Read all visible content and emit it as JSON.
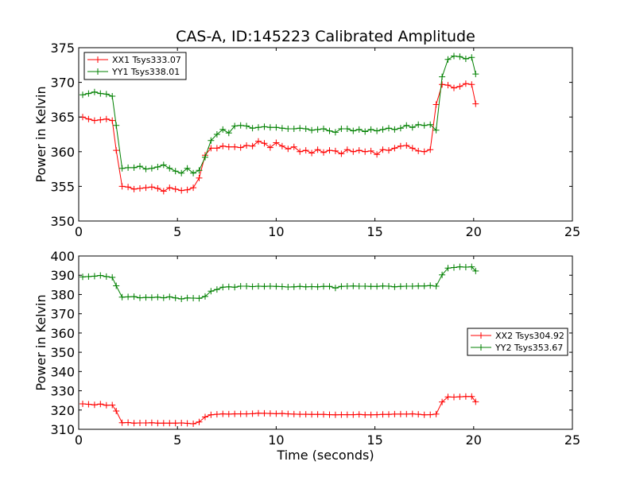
{
  "chart_data": [
    {
      "type": "line",
      "title": "CAS-A, ID:145223 Calibrated Amplitude",
      "xlabel": "",
      "ylabel": "Power in Kelvin",
      "xlim": [
        0,
        25
      ],
      "ylim": [
        350,
        375
      ],
      "xticks": [
        0,
        5,
        10,
        15,
        20,
        25
      ],
      "yticks": [
        350,
        355,
        360,
        365,
        370,
        375
      ],
      "grid": false,
      "legend": "top-left",
      "series": [
        {
          "name": "XX1 Tsys333.07",
          "color": "#ff0000",
          "x": [
            0.2,
            0.5,
            0.8,
            1.1,
            1.4,
            1.7,
            1.9,
            2.2,
            2.5,
            2.8,
            3.1,
            3.4,
            3.7,
            4.0,
            4.3,
            4.6,
            4.9,
            5.2,
            5.5,
            5.8,
            6.1,
            6.4,
            6.7,
            7.0,
            7.3,
            7.6,
            7.9,
            8.2,
            8.5,
            8.8,
            9.1,
            9.4,
            9.7,
            10.0,
            10.3,
            10.6,
            10.9,
            11.2,
            11.5,
            11.8,
            12.1,
            12.4,
            12.7,
            13.0,
            13.3,
            13.6,
            13.9,
            14.2,
            14.5,
            14.8,
            15.1,
            15.4,
            15.7,
            16.0,
            16.3,
            16.6,
            16.9,
            17.2,
            17.5,
            17.8,
            18.1,
            18.4,
            18.7,
            19.0,
            19.3,
            19.6,
            19.9,
            20.1
          ],
          "y": [
            365.0,
            364.7,
            364.5,
            364.6,
            364.7,
            364.5,
            360.2,
            355.0,
            354.9,
            354.6,
            354.7,
            354.8,
            354.9,
            354.7,
            354.3,
            354.8,
            354.6,
            354.4,
            354.5,
            354.8,
            356.2,
            359.5,
            360.5,
            360.5,
            360.8,
            360.7,
            360.7,
            360.6,
            360.9,
            360.8,
            361.5,
            361.2,
            360.6,
            361.3,
            360.8,
            360.4,
            360.7,
            360.0,
            360.2,
            359.8,
            360.3,
            359.9,
            360.2,
            360.1,
            359.7,
            360.3,
            360.0,
            360.2,
            360.0,
            360.1,
            359.6,
            360.3,
            360.2,
            360.5,
            360.8,
            360.9,
            360.5,
            360.1,
            360.0,
            360.3,
            366.8,
            369.7,
            369.6,
            369.2,
            369.4,
            369.8,
            369.7,
            366.9
          ]
        },
        {
          "name": "YY1 Tsys338.01",
          "color": "#008000",
          "x": [
            0.2,
            0.5,
            0.8,
            1.1,
            1.4,
            1.7,
            1.9,
            2.2,
            2.5,
            2.8,
            3.1,
            3.4,
            3.7,
            4.0,
            4.3,
            4.6,
            4.9,
            5.2,
            5.5,
            5.8,
            6.1,
            6.4,
            6.7,
            7.0,
            7.3,
            7.6,
            7.9,
            8.2,
            8.5,
            8.8,
            9.1,
            9.4,
            9.7,
            10.0,
            10.3,
            10.6,
            10.9,
            11.2,
            11.5,
            11.8,
            12.1,
            12.4,
            12.7,
            13.0,
            13.3,
            13.6,
            13.9,
            14.2,
            14.5,
            14.8,
            15.1,
            15.4,
            15.7,
            16.0,
            16.3,
            16.6,
            16.9,
            17.2,
            17.5,
            17.8,
            18.1,
            18.4,
            18.7,
            19.0,
            19.3,
            19.6,
            19.9,
            20.1
          ],
          "y": [
            368.2,
            368.4,
            368.6,
            368.4,
            368.3,
            368.0,
            363.8,
            357.6,
            357.7,
            357.7,
            357.9,
            357.5,
            357.6,
            357.8,
            358.1,
            357.6,
            357.2,
            356.9,
            357.6,
            356.9,
            357.3,
            359.2,
            361.6,
            362.5,
            363.2,
            362.7,
            363.7,
            363.8,
            363.7,
            363.4,
            363.5,
            363.6,
            363.5,
            363.5,
            363.4,
            363.3,
            363.3,
            363.4,
            363.3,
            363.1,
            363.2,
            363.3,
            363.0,
            362.8,
            363.3,
            363.3,
            363.0,
            363.2,
            362.9,
            363.2,
            363.0,
            363.2,
            363.4,
            363.2,
            363.4,
            363.8,
            363.5,
            363.9,
            363.8,
            363.9,
            363.1,
            370.8,
            373.3,
            373.8,
            373.7,
            373.4,
            373.6,
            371.2
          ]
        }
      ]
    },
    {
      "type": "line",
      "title": "",
      "xlabel": "Time (seconds)",
      "ylabel": "Power in Kelvin",
      "xlim": [
        0,
        25
      ],
      "ylim": [
        310,
        400
      ],
      "xticks": [
        0,
        5,
        10,
        15,
        20,
        25
      ],
      "yticks": [
        310,
        320,
        330,
        340,
        350,
        360,
        370,
        380,
        390,
        400
      ],
      "grid": false,
      "legend": "center-right",
      "series": [
        {
          "name": "XX2 Tsys304.92",
          "color": "#ff0000",
          "x": [
            0.2,
            0.5,
            0.8,
            1.1,
            1.4,
            1.7,
            1.9,
            2.2,
            2.5,
            2.8,
            3.1,
            3.4,
            3.7,
            4.0,
            4.3,
            4.6,
            4.9,
            5.2,
            5.5,
            5.8,
            6.1,
            6.4,
            6.7,
            7.0,
            7.3,
            7.6,
            7.9,
            8.2,
            8.5,
            8.8,
            9.1,
            9.4,
            9.7,
            10.0,
            10.3,
            10.6,
            10.9,
            11.2,
            11.5,
            11.8,
            12.1,
            12.4,
            12.7,
            13.0,
            13.3,
            13.6,
            13.9,
            14.2,
            14.5,
            14.8,
            15.1,
            15.4,
            15.7,
            16.0,
            16.3,
            16.6,
            16.9,
            17.2,
            17.5,
            17.8,
            18.1,
            18.4,
            18.7,
            19.0,
            19.3,
            19.6,
            19.9,
            20.1
          ],
          "y": [
            323.2,
            323.0,
            322.7,
            323.1,
            322.5,
            322.6,
            319.5,
            313.4,
            313.5,
            313.2,
            313.3,
            313.3,
            313.4,
            313.2,
            313.2,
            313.2,
            313.2,
            313.3,
            313.1,
            312.9,
            313.8,
            316.4,
            317.5,
            317.8,
            318.0,
            317.9,
            318.0,
            318.0,
            318.0,
            318.1,
            318.4,
            318.3,
            318.2,
            318.1,
            318.2,
            318.0,
            317.9,
            317.8,
            317.8,
            317.7,
            317.7,
            317.7,
            317.6,
            317.5,
            317.6,
            317.6,
            317.6,
            317.7,
            317.5,
            317.5,
            317.6,
            317.7,
            317.7,
            317.9,
            317.9,
            317.9,
            318.0,
            317.8,
            317.5,
            317.6,
            317.9,
            324.2,
            326.8,
            326.7,
            326.9,
            327.0,
            327.0,
            324.3
          ]
        },
        {
          "name": "YY2 Tsys353.67",
          "color": "#008000",
          "x": [
            0.2,
            0.5,
            0.8,
            1.1,
            1.4,
            1.7,
            1.9,
            2.2,
            2.5,
            2.8,
            3.1,
            3.4,
            3.7,
            4.0,
            4.3,
            4.6,
            4.9,
            5.2,
            5.5,
            5.8,
            6.1,
            6.4,
            6.7,
            7.0,
            7.3,
            7.6,
            7.9,
            8.2,
            8.5,
            8.8,
            9.1,
            9.4,
            9.7,
            10.0,
            10.3,
            10.6,
            10.9,
            11.2,
            11.5,
            11.8,
            12.1,
            12.4,
            12.7,
            13.0,
            13.3,
            13.6,
            13.9,
            14.2,
            14.5,
            14.8,
            15.1,
            15.4,
            15.7,
            16.0,
            16.3,
            16.6,
            16.9,
            17.2,
            17.5,
            17.8,
            18.1,
            18.4,
            18.7,
            19.0,
            19.3,
            19.6,
            19.9,
            20.1
          ],
          "y": [
            389.2,
            389.3,
            389.5,
            389.9,
            389.3,
            388.9,
            384.5,
            378.6,
            378.8,
            378.9,
            378.3,
            378.5,
            378.4,
            378.6,
            378.3,
            378.8,
            378.2,
            377.7,
            378.2,
            378.1,
            378.0,
            379.0,
            381.7,
            382.6,
            383.8,
            384.0,
            383.8,
            384.3,
            384.3,
            384.1,
            384.3,
            384.2,
            384.3,
            384.2,
            384.1,
            383.9,
            384.0,
            384.2,
            384.0,
            384.1,
            384.0,
            384.2,
            384.2,
            383.4,
            384.2,
            384.3,
            384.4,
            384.3,
            384.3,
            384.2,
            384.2,
            384.4,
            384.3,
            384.0,
            384.2,
            384.3,
            384.3,
            384.4,
            384.4,
            384.6,
            384.3,
            390.2,
            393.7,
            394.0,
            394.4,
            394.2,
            394.4,
            392.2
          ]
        }
      ]
    }
  ]
}
